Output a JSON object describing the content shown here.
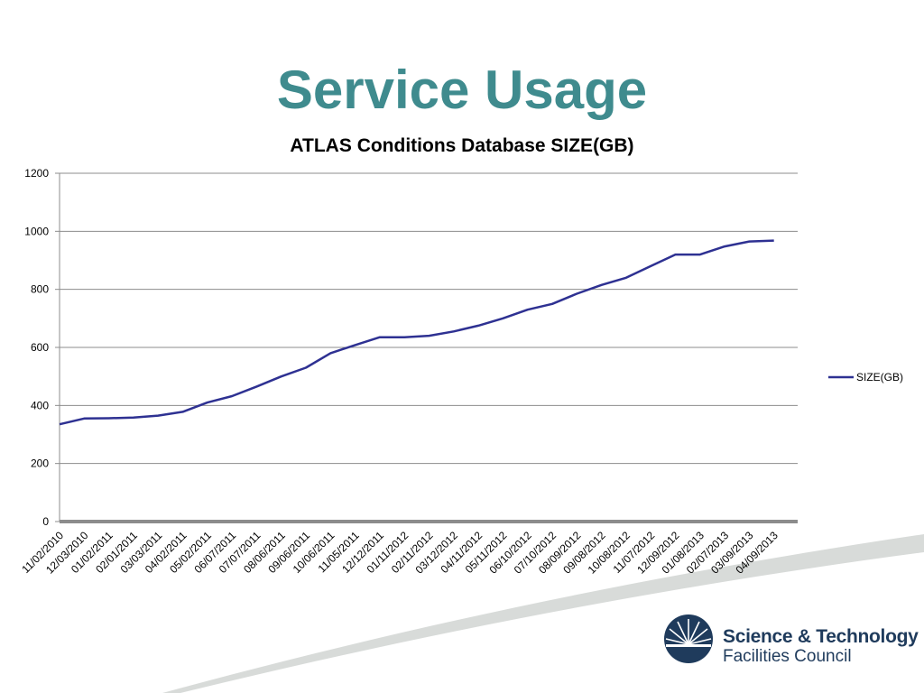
{
  "slide": {
    "title": "Service Usage"
  },
  "logo": {
    "org_line1": "Science & Technology",
    "org_line2": "Facilities Council"
  },
  "colors": {
    "title": "#3f8b8e",
    "series": "#2e3192",
    "grid": "#8c8c8c",
    "logo": "#1f3b5c"
  },
  "chart_data": {
    "type": "line",
    "title": "ATLAS Conditions Database SIZE(GB)",
    "xlabel": "",
    "ylabel": "",
    "ylim": [
      0,
      1200
    ],
    "yticks": [
      0,
      200,
      400,
      600,
      800,
      1000,
      1200
    ],
    "grid": true,
    "legend": "right",
    "categories": [
      "11/02/2010",
      "12/03/2010",
      "01/02/2011",
      "02/01/2011",
      "03/03/2011",
      "04/02/2011",
      "05/02/2011",
      "06/07/2011",
      "07/07/2011",
      "08/06/2011",
      "09/06/2011",
      "10/06/2011",
      "11/05/2011",
      "12/12/2011",
      "01/11/2012",
      "02/11/2012",
      "03/12/2012",
      "04/11/2012",
      "05/11/2012",
      "06/10/2012",
      "07/10/2012",
      "08/09/2012",
      "09/08/2012",
      "10/08/2012",
      "11/07/2012",
      "12/09/2012",
      "01/08/2013",
      "02/07/2013",
      "03/09/2013",
      "04/09/2013"
    ],
    "series": [
      {
        "name": "SIZE(GB)",
        "values": [
          335,
          355,
          356,
          358,
          365,
          378,
          410,
          432,
          465,
          500,
          530,
          580,
          608,
          635,
          635,
          640,
          655,
          675,
          700,
          730,
          750,
          785,
          815,
          840,
          880,
          920,
          920,
          948,
          965,
          968
        ]
      }
    ]
  }
}
